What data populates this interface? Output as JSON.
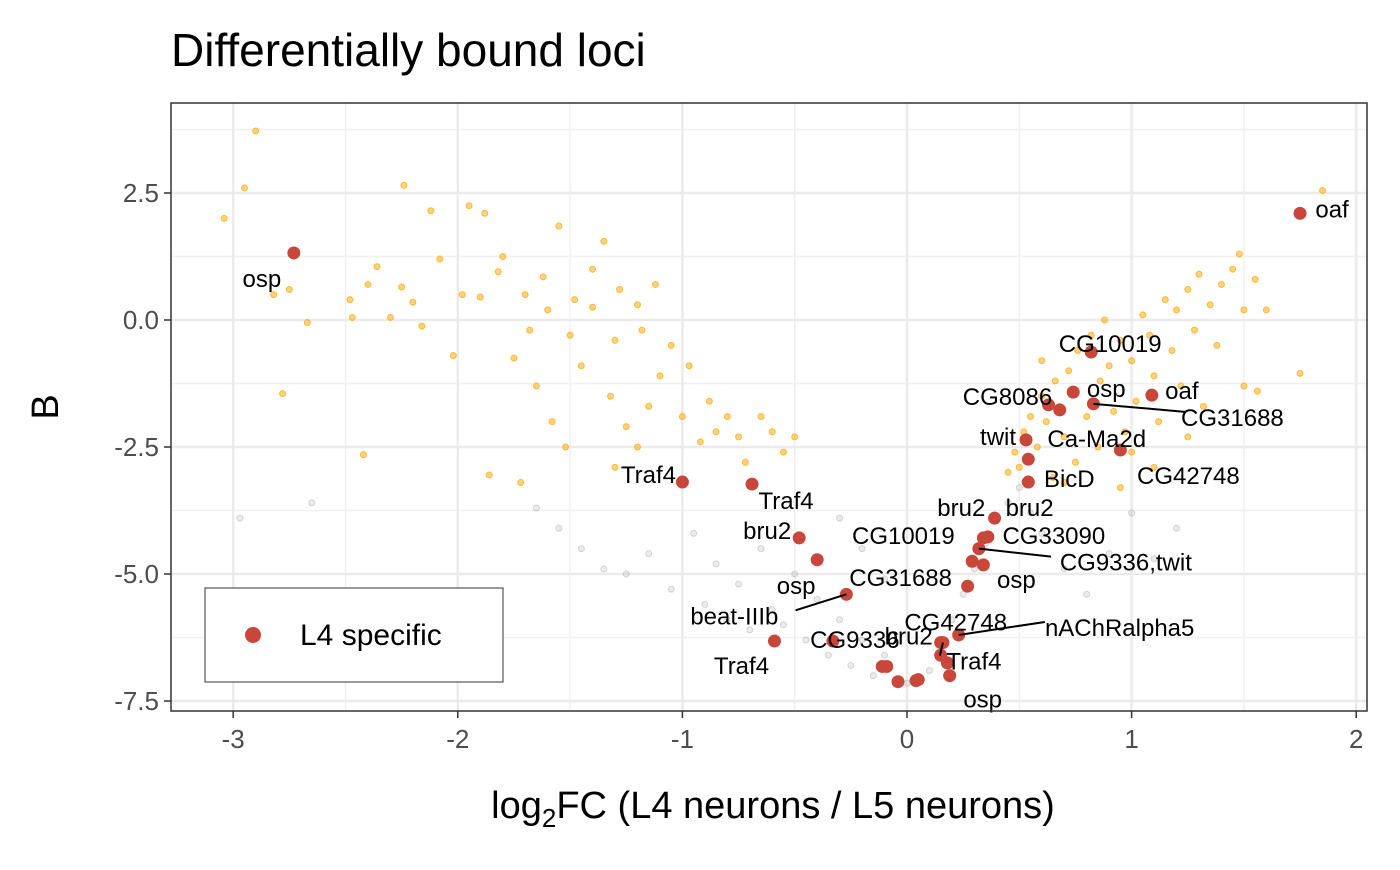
{
  "chart_data": {
    "type": "scatter",
    "title": "Differentially bound loci",
    "xlabel_parts": {
      "pre": "log",
      "sub": "2",
      "post": "FC (L4 neurons / L5 neurons)"
    },
    "ylabel": "B",
    "xlim": [
      -3.27,
      2.07
    ],
    "ylim": [
      -7.6,
      4.3
    ],
    "xticks": [
      -3,
      -2,
      -1,
      0,
      1,
      2
    ],
    "xtick_labels": [
      "-3",
      "-2",
      "-1",
      "0",
      "1",
      "2"
    ],
    "yticks": [
      2.5,
      0,
      -2.5,
      -5,
      -7.5
    ],
    "ytick_labels": [
      "2.5",
      "0.0",
      "-2.5",
      "-5.0",
      "-7.5"
    ],
    "grid": true,
    "legend": {
      "position": "bottom-left",
      "entries": [
        {
          "label": "L4 specific",
          "color": "#C9473A"
        }
      ]
    },
    "colors": {
      "background_points": "#808080",
      "significant": "#FFA500",
      "l4_specific": "#C9473A"
    },
    "series": [
      {
        "role": "significant",
        "points": [
          [
            -3.04,
            2.0
          ],
          [
            -2.95,
            2.6
          ],
          [
            -2.9,
            3.72
          ],
          [
            -2.82,
            0.5
          ],
          [
            -2.78,
            -1.45
          ],
          [
            -2.75,
            0.6
          ],
          [
            -2.67,
            -0.05
          ],
          [
            -2.48,
            0.4
          ],
          [
            -2.47,
            0.05
          ],
          [
            -2.42,
            -2.65
          ],
          [
            -2.4,
            0.7
          ],
          [
            -2.36,
            1.05
          ],
          [
            -2.3,
            0.05
          ],
          [
            -2.25,
            0.65
          ],
          [
            -2.24,
            2.65
          ],
          [
            -2.2,
            0.35
          ],
          [
            -2.16,
            -0.12
          ],
          [
            -2.12,
            2.15
          ],
          [
            -2.08,
            1.2
          ],
          [
            -2.02,
            -0.7
          ],
          [
            -1.98,
            0.5
          ],
          [
            -1.95,
            2.25
          ],
          [
            -1.9,
            0.45
          ],
          [
            -1.88,
            2.1
          ],
          [
            -1.86,
            -3.05
          ],
          [
            -1.82,
            0.95
          ],
          [
            -1.8,
            1.25
          ],
          [
            -1.75,
            -0.75
          ],
          [
            -1.72,
            -3.2
          ],
          [
            -1.7,
            0.5
          ],
          [
            -1.65,
            -1.3
          ],
          [
            -1.62,
            0.85
          ],
          [
            -1.58,
            -2.0
          ],
          [
            -1.55,
            1.85
          ],
          [
            -1.52,
            -2.5
          ],
          [
            -1.48,
            0.4
          ],
          [
            -1.45,
            -0.9
          ],
          [
            -1.4,
            0.25
          ],
          [
            -1.35,
            1.55
          ],
          [
            -1.32,
            -1.5
          ],
          [
            -1.3,
            -0.4
          ],
          [
            -1.28,
            0.6
          ],
          [
            -1.25,
            -2.1
          ],
          [
            -1.2,
            -2.5
          ],
          [
            -1.18,
            -0.2
          ],
          [
            -1.15,
            -1.7
          ],
          [
            -1.12,
            0.7
          ],
          [
            -1.1,
            -1.1
          ],
          [
            -1.05,
            -0.5
          ],
          [
            -1.0,
            -1.9
          ],
          [
            -0.97,
            -0.9
          ],
          [
            -0.92,
            -2.4
          ],
          [
            -0.88,
            -1.6
          ],
          [
            -0.85,
            -2.2
          ],
          [
            -0.8,
            -1.9
          ],
          [
            -0.75,
            -2.3
          ],
          [
            -0.72,
            -2.8
          ],
          [
            -0.65,
            -1.9
          ],
          [
            -0.6,
            -2.2
          ],
          [
            -0.55,
            -2.6
          ],
          [
            -0.5,
            -2.3
          ],
          [
            -1.4,
            1.0
          ],
          [
            -1.6,
            0.2
          ],
          [
            -1.68,
            -0.2
          ],
          [
            -1.2,
            0.3
          ],
          [
            -1.3,
            -2.9
          ],
          [
            -1.5,
            -0.3
          ],
          [
            0.45,
            -3.0
          ],
          [
            0.48,
            -2.6
          ],
          [
            0.5,
            -2.9
          ],
          [
            0.52,
            -2.2
          ],
          [
            0.55,
            -1.9
          ],
          [
            0.58,
            -2.5
          ],
          [
            0.6,
            -1.5
          ],
          [
            0.62,
            -2.0
          ],
          [
            0.65,
            -3.1
          ],
          [
            0.66,
            -1.2
          ],
          [
            0.7,
            -2.3
          ],
          [
            0.72,
            -1.0
          ],
          [
            0.75,
            -2.8
          ],
          [
            0.76,
            -0.6
          ],
          [
            0.8,
            -1.9
          ],
          [
            0.82,
            -0.3
          ],
          [
            0.85,
            -2.5
          ],
          [
            0.86,
            -1.2
          ],
          [
            0.88,
            0.0
          ],
          [
            0.9,
            -0.9
          ],
          [
            0.92,
            -1.8
          ],
          [
            0.95,
            -0.4
          ],
          [
            0.97,
            -2.2
          ],
          [
            1.0,
            -0.8
          ],
          [
            1.02,
            -1.6
          ],
          [
            1.05,
            0.1
          ],
          [
            1.08,
            -0.3
          ],
          [
            1.1,
            -1.1
          ],
          [
            1.12,
            -2.0
          ],
          [
            1.15,
            0.4
          ],
          [
            1.18,
            -0.6
          ],
          [
            1.2,
            0.2
          ],
          [
            1.22,
            -1.3
          ],
          [
            1.25,
            0.6
          ],
          [
            1.28,
            -0.2
          ],
          [
            1.3,
            0.9
          ],
          [
            1.32,
            -1.7
          ],
          [
            1.35,
            0.3
          ],
          [
            1.38,
            -0.5
          ],
          [
            1.4,
            0.7
          ],
          [
            1.45,
            1.0
          ],
          [
            1.48,
            1.3
          ],
          [
            1.5,
            0.2
          ],
          [
            1.55,
            0.8
          ],
          [
            1.56,
            -1.4
          ],
          [
            1.6,
            0.2
          ],
          [
            1.75,
            -1.05
          ],
          [
            1.85,
            2.55
          ],
          [
            0.95,
            -3.3
          ],
          [
            1.0,
            -2.6
          ],
          [
            1.1,
            -2.9
          ],
          [
            0.7,
            -3.2
          ],
          [
            0.6,
            -0.8
          ],
          [
            1.25,
            -2.3
          ],
          [
            1.5,
            -1.3
          ]
        ]
      },
      {
        "role": "background",
        "points": [
          [
            -2.97,
            -3.9
          ],
          [
            -2.65,
            -3.6
          ],
          [
            -1.65,
            -3.7
          ],
          [
            -1.55,
            -4.1
          ],
          [
            -1.45,
            -4.5
          ],
          [
            -1.35,
            -4.9
          ],
          [
            -1.25,
            -5.0
          ],
          [
            -1.15,
            -4.6
          ],
          [
            -1.05,
            -5.3
          ],
          [
            -0.95,
            -4.2
          ],
          [
            -0.9,
            -5.6
          ],
          [
            -0.85,
            -4.8
          ],
          [
            -0.8,
            -5.9
          ],
          [
            -0.75,
            -5.2
          ],
          [
            -0.7,
            -6.1
          ],
          [
            -0.65,
            -4.5
          ],
          [
            -0.6,
            -5.7
          ],
          [
            -0.55,
            -6.0
          ],
          [
            -0.5,
            -5.0
          ],
          [
            -0.45,
            -6.3
          ],
          [
            -0.4,
            -5.5
          ],
          [
            -0.35,
            -6.6
          ],
          [
            -0.3,
            -5.9
          ],
          [
            -0.25,
            -6.8
          ],
          [
            -0.2,
            -6.3
          ],
          [
            -0.15,
            -7.0
          ],
          [
            -0.1,
            -6.6
          ],
          [
            -0.05,
            -7.1
          ],
          [
            0.0,
            -7.15
          ],
          [
            0.05,
            -7.1
          ],
          [
            0.1,
            -6.9
          ],
          [
            0.15,
            -6.4
          ],
          [
            0.2,
            -5.9
          ],
          [
            0.25,
            -5.4
          ],
          [
            0.3,
            -4.9
          ],
          [
            0.35,
            -4.4
          ],
          [
            0.4,
            -3.9
          ],
          [
            0.45,
            -3.6
          ],
          [
            0.5,
            -3.3
          ],
          [
            0.55,
            -3.8
          ],
          [
            0.6,
            -4.2
          ],
          [
            0.7,
            -4.9
          ],
          [
            0.8,
            -5.4
          ],
          [
            0.9,
            -4.6
          ],
          [
            1.0,
            -3.8
          ],
          [
            1.1,
            -4.7
          ],
          [
            1.2,
            -4.1
          ],
          [
            -0.3,
            -3.9
          ],
          [
            -0.2,
            -4.5
          ],
          [
            -0.1,
            -5.1
          ]
        ]
      },
      {
        "role": "l4_specific",
        "name": "L4 specific",
        "points": [
          {
            "x": -2.73,
            "y": 1.32,
            "label": "osp"
          },
          {
            "x": 1.75,
            "y": 2.1,
            "label": "oaf"
          },
          {
            "x": 0.82,
            "y": -0.63,
            "label": "CG10019"
          },
          {
            "x": 0.74,
            "y": -1.42,
            "label": "osp"
          },
          {
            "x": 1.09,
            "y": -1.48,
            "label": "oaf"
          },
          {
            "x": 0.63,
            "y": -1.67,
            "label": "CG8086"
          },
          {
            "x": 0.68,
            "y": -1.77,
            "label": "Ca-Ma2d"
          },
          {
            "x": 0.83,
            "y": -1.65,
            "label": "CG31688"
          },
          {
            "x": 0.53,
            "y": -2.36,
            "label": "twit"
          },
          {
            "x": 0.54,
            "y": -2.74,
            "label": "BicD"
          },
          {
            "x": 0.95,
            "y": -2.56,
            "label": "CG42748"
          },
          {
            "x": 0.54,
            "y": -3.19,
            "label": "bru2"
          },
          {
            "x": 0.39,
            "y": -3.9,
            "label": "bru2"
          },
          {
            "x": -1.0,
            "y": -3.19,
            "label": "Traf4"
          },
          {
            "x": -0.69,
            "y": -3.23,
            "label": "Traf4"
          },
          {
            "x": -0.48,
            "y": -4.29,
            "label": "bru2"
          },
          {
            "x": -0.4,
            "y": -4.72,
            "label": "osp"
          },
          {
            "x": 0.34,
            "y": -4.29,
            "label": "CG10019"
          },
          {
            "x": 0.36,
            "y": -4.27,
            "label": "CG33090"
          },
          {
            "x": 0.32,
            "y": -4.5,
            "label": "CG9336,twit"
          },
          {
            "x": 0.34,
            "y": -4.82,
            "label": "osp"
          },
          {
            "x": 0.29,
            "y": -4.75,
            "label": ""
          },
          {
            "x": 0.27,
            "y": -5.24,
            "label": "CG31688"
          },
          {
            "x": -0.27,
            "y": -5.4,
            "label": "beat-IIIb"
          },
          {
            "x": -0.59,
            "y": -6.32,
            "label": "Traf4"
          },
          {
            "x": -0.33,
            "y": -6.32,
            "label": "CG9336"
          },
          {
            "x": 0.15,
            "y": -6.35,
            "label": "bru2"
          },
          {
            "x": 0.23,
            "y": -6.2,
            "label": "nAChRalpha5"
          },
          {
            "x": 0.16,
            "y": -6.35,
            "label": "Traf4"
          },
          {
            "x": 0.15,
            "y": -6.6,
            "label": "CG42748"
          },
          {
            "x": 0.18,
            "y": -6.75,
            "label": ""
          },
          {
            "x": 0.19,
            "y": -7.0,
            "label": "osp"
          },
          {
            "x": -0.11,
            "y": -6.82,
            "label": ""
          },
          {
            "x": -0.09,
            "y": -6.82,
            "label": ""
          },
          {
            "x": -0.04,
            "y": -7.12,
            "label": ""
          },
          {
            "x": 0.04,
            "y": -7.1,
            "label": ""
          },
          {
            "x": 0.05,
            "y": -7.08,
            "label": ""
          }
        ]
      }
    ]
  }
}
